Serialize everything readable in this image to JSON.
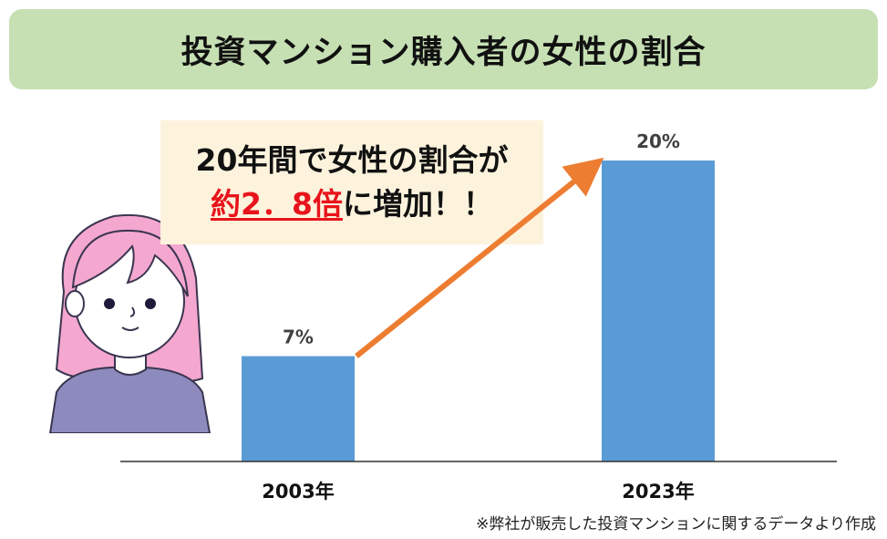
{
  "title": "投資マンション購入者の女性の割合",
  "callout": {
    "line1": "20年間で女性の割合が",
    "highlight": "約2．8倍",
    "line2_rest": "に増加！！"
  },
  "footnote": "※弊社が販売した投資マンションに関するデータより作成",
  "chart_data": {
    "type": "bar",
    "categories": [
      "2003年",
      "2023年"
    ],
    "values": [
      7,
      20
    ],
    "data_labels": [
      "7%",
      "20%"
    ],
    "unit": "%",
    "ylim": [
      0,
      24
    ],
    "grid": false,
    "bar_color": "#5b9bd5",
    "arrow_color": "#ed7d31"
  }
}
